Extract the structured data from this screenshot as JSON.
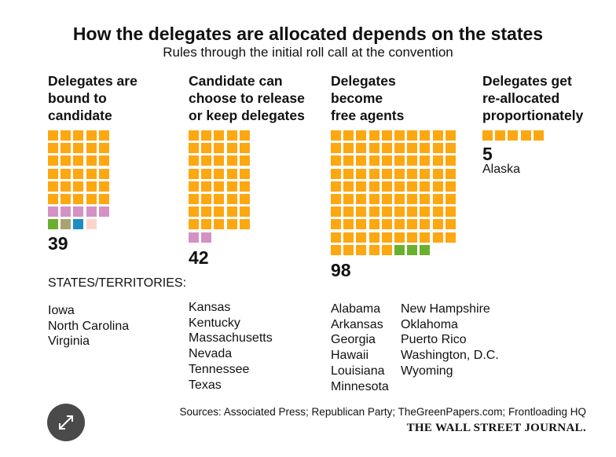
{
  "title": "How the delegates are allocated depends on the states",
  "subtitle": "Rules through the initial roll call at the convention",
  "states_label": "STATES/TERRITORIES:",
  "sources": "Sources: Associated Press; Republican Party; TheGreenPapers.com; Frontloading HQ",
  "publisher": "THE WALL STREET JOURNAL.",
  "expand_icon": "expand-arrows-icon",
  "colors": {
    "orange": "#FDA711",
    "pink": "#D491C4",
    "green": "#6BAF2E",
    "olive": "#A8A373",
    "blue": "#1C8EC2",
    "peach": "#FBD5CB"
  },
  "chart_data": {
    "type": "waffle",
    "unit": "delegates",
    "categories": [
      "Delegates are bound to candidate",
      "Candidate can choose to release or keep delegates",
      "Delegates become free agents",
      "Delegates get re-allocated proportionately"
    ],
    "totals": [
      39,
      42,
      98,
      5
    ],
    "columns": [
      {
        "heading": "Delegates are\nbound to\ncandidate",
        "total": 39,
        "segments": [
          {
            "color": "orange",
            "count": 30
          },
          {
            "color": "pink",
            "count": 5
          },
          {
            "color": "green",
            "count": 1
          },
          {
            "color": "olive",
            "count": 1
          },
          {
            "color": "blue",
            "count": 1
          },
          {
            "color": "peach",
            "count": 1
          }
        ],
        "states": [
          "Iowa",
          "North Carolina",
          "Virginia"
        ]
      },
      {
        "heading": "Candidate can\nchoose to release\nor keep delegates",
        "total": 42,
        "segments": [
          {
            "color": "orange",
            "count": 40
          },
          {
            "color": "pink",
            "count": 2
          }
        ],
        "states": [
          "Kansas",
          "Kentucky",
          "Massachusetts",
          "Nevada",
          "Tennessee",
          "Texas"
        ]
      },
      {
        "heading": "Delegates\nbecome\nfree agents",
        "total": 98,
        "segments": [
          {
            "color": "orange",
            "count": 95
          },
          {
            "color": "green",
            "count": 3
          }
        ],
        "states": [
          "Alabama",
          "Arkansas",
          "Georgia",
          "Hawaii",
          "Louisiana",
          "Minnesota"
        ],
        "states_2": [
          "New Hampshire",
          "Oklahoma",
          "Puerto Rico",
          "Washington, D.C.",
          "Wyoming"
        ]
      },
      {
        "heading": "Delegates get\nre-allocated\nproportionately",
        "total": 5,
        "segments": [
          {
            "color": "orange",
            "count": 5
          }
        ],
        "states": [
          "Alaska"
        ]
      }
    ]
  }
}
